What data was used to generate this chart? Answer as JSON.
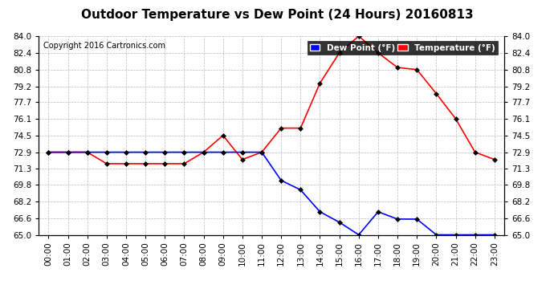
{
  "title": "Outdoor Temperature vs Dew Point (24 Hours) 20160813",
  "copyright": "Copyright 2016 Cartronics.com",
  "ylim": [
    65.0,
    84.0
  ],
  "yticks": [
    65.0,
    66.6,
    68.2,
    69.8,
    71.3,
    72.9,
    74.5,
    76.1,
    77.7,
    79.2,
    80.8,
    82.4,
    84.0
  ],
  "x_labels": [
    "00:00",
    "01:00",
    "02:00",
    "03:00",
    "04:00",
    "05:00",
    "06:00",
    "07:00",
    "08:00",
    "09:00",
    "10:00",
    "11:00",
    "12:00",
    "13:00",
    "14:00",
    "15:00",
    "16:00",
    "17:00",
    "18:00",
    "19:00",
    "20:00",
    "21:00",
    "22:00",
    "23:00"
  ],
  "temperature": [
    72.9,
    72.9,
    72.9,
    71.8,
    71.8,
    71.8,
    71.8,
    71.8,
    72.9,
    74.5,
    72.2,
    72.9,
    75.2,
    75.2,
    79.5,
    82.4,
    84.0,
    82.4,
    81.0,
    80.8,
    78.5,
    76.1,
    72.9,
    72.2
  ],
  "dew_point": [
    72.9,
    72.9,
    72.9,
    72.9,
    72.9,
    72.9,
    72.9,
    72.9,
    72.9,
    72.9,
    72.9,
    72.9,
    70.2,
    69.3,
    67.2,
    66.2,
    65.0,
    67.2,
    66.5,
    66.5,
    65.0,
    65.0,
    65.0,
    65.0
  ],
  "temp_color": "red",
  "dew_color": "blue",
  "grid_color": "#bbbbbb",
  "title_fontsize": 11,
  "copyright_fontsize": 7,
  "tick_fontsize": 7.5,
  "legend_dew_label": "Dew Point (°F)",
  "legend_temp_label": "Temperature (°F)"
}
